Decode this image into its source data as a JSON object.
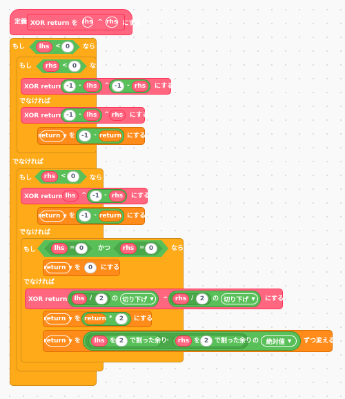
{
  "define": {
    "label": "定義",
    "name": "XOR return を",
    "arg1": "lhs",
    "op": "^",
    "arg2": "rhs",
    "suffix": "にする"
  },
  "words": {
    "if": "もし",
    "then": "なら",
    "else": "でなければ",
    "set_pre": "を",
    "set_suf": "にする",
    "and": "かつ",
    "of": "の",
    "mod": "で割った余り",
    "change": "ずつ変える"
  },
  "call_label": "XOR return を",
  "vars": {
    "lhs": "lhs",
    "rhs": "rhs",
    "ret": "return"
  },
  "nums": {
    "zero": "0",
    "neg1": "-1",
    "two": "2"
  },
  "ops": {
    "lt": "<",
    "eq": "=",
    "minus": "-",
    "xor": "^",
    "div": "/",
    "mul": "*"
  },
  "funcs": {
    "floor": "切り下げ",
    "abs": "絶対値"
  },
  "arrow": "▼"
}
